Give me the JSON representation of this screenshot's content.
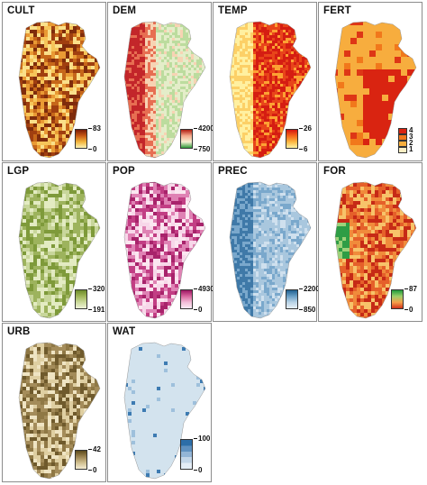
{
  "panels": [
    {
      "key": "cult",
      "title": "CULT",
      "legend": {
        "type": "gradient",
        "max": "83",
        "min": "0",
        "colors": [
          "#7a1a06",
          "#c85a16",
          "#f2b43c",
          "#fdf2b4"
        ]
      },
      "map": {
        "base": "#e8a43a",
        "variety": [
          "#a03f10",
          "#c6671a",
          "#e99a34",
          "#f6c55a",
          "#fae08a",
          "#7f2c0c"
        ],
        "pixel": "coarse"
      }
    },
    {
      "key": "dem",
      "title": "DEM",
      "legend": {
        "type": "gradient",
        "max": "4200",
        "min": "750",
        "colors": [
          "#b01d12",
          "#f4a98c",
          "#f6f0d2",
          "#2f9a3a"
        ]
      },
      "map": {
        "base": "#e4edc9",
        "variety": [
          "#c3262a",
          "#e76e52",
          "#f7d3b3",
          "#bcdc9e",
          "#3c9a3c"
        ],
        "pixel": "fine"
      }
    },
    {
      "key": "temp",
      "title": "TEMP",
      "legend": {
        "type": "gradient",
        "max": "26",
        "min": "6",
        "colors": [
          "#d41510",
          "#f4661a",
          "#fbb640",
          "#fff2a4"
        ]
      },
      "map": {
        "base": "#f17a1c",
        "variety": [
          "#d51d12",
          "#e8451a",
          "#fca133",
          "#fcd067",
          "#fff0a0"
        ],
        "pixel": "fine"
      }
    },
    {
      "key": "fert",
      "title": "FERT",
      "legend": {
        "type": "categorical",
        "labels": [
          "4",
          "3",
          "2",
          "1"
        ],
        "colors": [
          "#d92411",
          "#f1781b",
          "#f7ae3c",
          "#fbefc4"
        ]
      },
      "map": {
        "base": "#f7ad3e",
        "variety": [
          "#de3616",
          "#d92411",
          "#f7ad3e",
          "#f1781b"
        ],
        "pixel": "blocky"
      }
    },
    {
      "key": "lgp",
      "title": "LGP",
      "legend": {
        "type": "gradient",
        "max": "320",
        "min": "191",
        "colors": [
          "#6b8a2a",
          "#a0b65a",
          "#cbd99b",
          "#eef3d8"
        ]
      },
      "map": {
        "base": "#b3c47a",
        "variety": [
          "#7e9a3a",
          "#9db35d",
          "#c8d69b",
          "#e3ebc2"
        ],
        "pixel": "coarse"
      }
    },
    {
      "key": "pop",
      "title": "POP",
      "legend": {
        "type": "gradient",
        "max": "4930",
        "min": "0",
        "colors": [
          "#9c1662",
          "#d9679f",
          "#f2bdd8",
          "#fcecf4"
        ]
      },
      "map": {
        "base": "#efbbd6",
        "variety": [
          "#c23e84",
          "#df82b4",
          "#f7d7e9",
          "#a8236b",
          "#fbe6f0"
        ],
        "pixel": "coarse"
      }
    },
    {
      "key": "prec",
      "title": "PREC",
      "legend": {
        "type": "gradient",
        "max": "2200",
        "min": "850",
        "colors": [
          "#1f5f8f",
          "#6a9fc6",
          "#b9d3e6",
          "#e7f0f7"
        ]
      },
      "map": {
        "base": "#a9c7de",
        "variety": [
          "#3f79a8",
          "#7aa8cc",
          "#cfe0ee",
          "#e3edf6"
        ],
        "pixel": "fine"
      }
    },
    {
      "key": "for",
      "title": "FOR",
      "legend": {
        "type": "gradient",
        "max": "87",
        "min": "0",
        "colors": [
          "#1f9a3a",
          "#9ccf6a",
          "#f5a04a",
          "#d2321a"
        ]
      },
      "map": {
        "base": "#d94a22",
        "variety": [
          "#c62a16",
          "#f08b3b",
          "#f7c36a",
          "#e5602a",
          "#2e9d45",
          "#9ed27a"
        ],
        "pixel": "coarse"
      }
    },
    {
      "key": "urb",
      "title": "URB",
      "legend": {
        "type": "gradient",
        "max": "42",
        "min": "0",
        "colors": [
          "#5c4a1c",
          "#9c8452",
          "#d0bf8f",
          "#f4ecd2"
        ]
      },
      "map": {
        "base": "#c2ad7c",
        "variety": [
          "#6f5a2c",
          "#8f7845",
          "#dfcfa2",
          "#efe4c3",
          "#a48c5a"
        ],
        "pixel": "coarse"
      }
    },
    {
      "key": "wat",
      "title": "WAT",
      "legend": {
        "type": "categorical_gradient",
        "max": "100",
        "min": "0",
        "colors": [
          "#2d6ea8",
          "#5f91c0",
          "#93b5d6",
          "#c3d6e8",
          "#e4edf6"
        ]
      },
      "map": {
        "base": "#d3e3ee",
        "variety": [
          "#3d7bb2",
          "#9ec0dc"
        ],
        "pixel": "edge"
      }
    }
  ]
}
